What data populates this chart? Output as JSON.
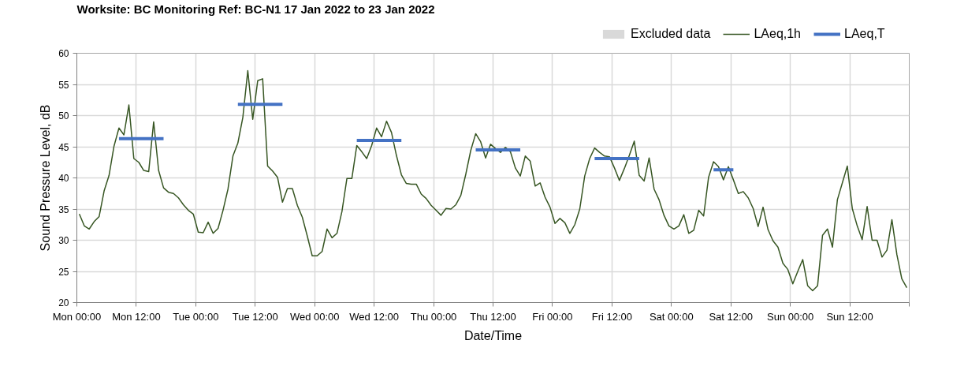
{
  "chart_data": {
    "type": "line",
    "title": "Worksite: BC    Monitoring Ref: BC-N1    17 Jan 2022 to 23 Jan 2022",
    "xlabel": "Date/Time",
    "ylabel": "Sound Pressure Level, dB",
    "xlim": [
      "2022-01-17T00:00",
      "2022-01-24T00:00"
    ],
    "ylim": [
      20,
      60
    ],
    "xticks": [
      {
        "value": "2022-01-17T00:00",
        "label": "Mon 00:00"
      },
      {
        "value": "2022-01-17T12:00",
        "label": "Mon 12:00"
      },
      {
        "value": "2022-01-18T00:00",
        "label": "Tue 00:00"
      },
      {
        "value": "2022-01-18T12:00",
        "label": "Tue 12:00"
      },
      {
        "value": "2022-01-19T00:00",
        "label": "Wed 00:00"
      },
      {
        "value": "2022-01-19T12:00",
        "label": "Wed 12:00"
      },
      {
        "value": "2022-01-20T00:00",
        "label": "Thu 00:00"
      },
      {
        "value": "2022-01-20T12:00",
        "label": "Thu 12:00"
      },
      {
        "value": "2022-01-21T00:00",
        "label": "Fri 00:00"
      },
      {
        "value": "2022-01-21T12:00",
        "label": "Fri 12:00"
      },
      {
        "value": "2022-01-22T00:00",
        "label": "Sat 00:00"
      },
      {
        "value": "2022-01-22T12:00",
        "label": "Sat 12:00"
      },
      {
        "value": "2022-01-23T00:00",
        "label": "Sun 00:00"
      },
      {
        "value": "2022-01-23T12:00",
        "label": "Sun 12:00"
      },
      {
        "value": "2022-01-24T00:00",
        "label": null
      }
    ],
    "yticks": [
      20,
      25,
      30,
      35,
      40,
      45,
      50,
      55,
      60
    ],
    "grid": true,
    "legend": "top right",
    "series": [
      {
        "name": "Excluded data",
        "type": "bar",
        "color": "#d9d9d9"
      },
      {
        "name": "LAeq,1h",
        "color": "#375623",
        "x": [
          "2022-01-17T00:30",
          "2022-01-17T01:30",
          "2022-01-17T02:30",
          "2022-01-17T03:30",
          "2022-01-17T04:30",
          "2022-01-17T05:30",
          "2022-01-17T06:30",
          "2022-01-17T07:30",
          "2022-01-17T08:30",
          "2022-01-17T09:30",
          "2022-01-17T10:30",
          "2022-01-17T11:30",
          "2022-01-17T12:30",
          "2022-01-17T13:30",
          "2022-01-17T14:30",
          "2022-01-17T15:30",
          "2022-01-17T16:30",
          "2022-01-17T17:30",
          "2022-01-17T18:30",
          "2022-01-17T19:30",
          "2022-01-17T20:30",
          "2022-01-17T21:30",
          "2022-01-17T22:30",
          "2022-01-17T23:30",
          "2022-01-18T00:30",
          "2022-01-18T01:30",
          "2022-01-18T02:30",
          "2022-01-18T03:30",
          "2022-01-18T04:30",
          "2022-01-18T05:30",
          "2022-01-18T06:30",
          "2022-01-18T07:30",
          "2022-01-18T08:30",
          "2022-01-18T09:30",
          "2022-01-18T10:30",
          "2022-01-18T11:30",
          "2022-01-18T12:30",
          "2022-01-18T13:30",
          "2022-01-18T14:30",
          "2022-01-18T15:30",
          "2022-01-18T16:30",
          "2022-01-18T17:30",
          "2022-01-18T18:30",
          "2022-01-18T19:30",
          "2022-01-18T20:30",
          "2022-01-18T21:30",
          "2022-01-18T22:30",
          "2022-01-18T23:30",
          "2022-01-19T00:30",
          "2022-01-19T01:30",
          "2022-01-19T02:30",
          "2022-01-19T03:30",
          "2022-01-19T04:30",
          "2022-01-19T05:30",
          "2022-01-19T06:30",
          "2022-01-19T07:30",
          "2022-01-19T08:30",
          "2022-01-19T09:30",
          "2022-01-19T10:30",
          "2022-01-19T11:30",
          "2022-01-19T12:30",
          "2022-01-19T13:30",
          "2022-01-19T14:30",
          "2022-01-19T15:30",
          "2022-01-19T16:30",
          "2022-01-19T17:30",
          "2022-01-19T18:30",
          "2022-01-19T19:30",
          "2022-01-19T20:30",
          "2022-01-19T21:30",
          "2022-01-19T22:30",
          "2022-01-19T23:30",
          "2022-01-20T00:30",
          "2022-01-20T01:30",
          "2022-01-20T02:30",
          "2022-01-20T03:30",
          "2022-01-20T04:30",
          "2022-01-20T05:30",
          "2022-01-20T06:30",
          "2022-01-20T07:30",
          "2022-01-20T08:30",
          "2022-01-20T09:30",
          "2022-01-20T10:30",
          "2022-01-20T11:30",
          "2022-01-20T12:30",
          "2022-01-20T13:30",
          "2022-01-20T14:30",
          "2022-01-20T15:30",
          "2022-01-20T16:30",
          "2022-01-20T17:30",
          "2022-01-20T18:30",
          "2022-01-20T19:30",
          "2022-01-20T20:30",
          "2022-01-20T21:30",
          "2022-01-20T22:30",
          "2022-01-20T23:30",
          "2022-01-21T00:30",
          "2022-01-21T01:30",
          "2022-01-21T02:30",
          "2022-01-21T03:30",
          "2022-01-21T04:30",
          "2022-01-21T05:30",
          "2022-01-21T06:30",
          "2022-01-21T07:30",
          "2022-01-21T08:30",
          "2022-01-21T09:30",
          "2022-01-21T10:30",
          "2022-01-21T11:30",
          "2022-01-21T12:30",
          "2022-01-21T13:30",
          "2022-01-21T14:30",
          "2022-01-21T15:30",
          "2022-01-21T16:30",
          "2022-01-21T17:30",
          "2022-01-21T18:30",
          "2022-01-21T19:30",
          "2022-01-21T20:30",
          "2022-01-21T21:30",
          "2022-01-21T22:30",
          "2022-01-21T23:30",
          "2022-01-22T00:30",
          "2022-01-22T01:30",
          "2022-01-22T02:30",
          "2022-01-22T03:30",
          "2022-01-22T04:30",
          "2022-01-22T05:30",
          "2022-01-22T06:30",
          "2022-01-22T07:30",
          "2022-01-22T08:30",
          "2022-01-22T09:30",
          "2022-01-22T10:30",
          "2022-01-22T11:30",
          "2022-01-22T12:30",
          "2022-01-22T13:30",
          "2022-01-22T14:30",
          "2022-01-22T15:30",
          "2022-01-22T16:30",
          "2022-01-22T17:30",
          "2022-01-22T18:30",
          "2022-01-22T19:30",
          "2022-01-22T20:30",
          "2022-01-22T21:30",
          "2022-01-22T22:30",
          "2022-01-22T23:30",
          "2022-01-23T00:30",
          "2022-01-23T01:30",
          "2022-01-23T02:30",
          "2022-01-23T03:30",
          "2022-01-23T04:30",
          "2022-01-23T05:30",
          "2022-01-23T06:30",
          "2022-01-23T07:30",
          "2022-01-23T08:30",
          "2022-01-23T09:30",
          "2022-01-23T10:30",
          "2022-01-23T11:30",
          "2022-01-23T12:30",
          "2022-01-23T13:30",
          "2022-01-23T14:30",
          "2022-01-23T15:30",
          "2022-01-23T16:30",
          "2022-01-23T17:30",
          "2022-01-23T18:30",
          "2022-01-23T19:30",
          "2022-01-23T20:30",
          "2022-01-23T21:30",
          "2022-01-23T22:30",
          "2022-01-23T23:30"
        ],
        "values": [
          34.2,
          32.3,
          31.8,
          33.0,
          33.8,
          37.9,
          40.4,
          45.1,
          48.0,
          46.9,
          51.7,
          43.1,
          42.5,
          41.2,
          41.0,
          49.0,
          41.2,
          38.4,
          37.7,
          37.5,
          36.8,
          35.7,
          34.8,
          34.2,
          31.3,
          31.2,
          32.9,
          31.1,
          31.9,
          34.8,
          38.2,
          43.5,
          45.6,
          49.7,
          57.2,
          49.4,
          55.6,
          55.9,
          41.9,
          41.1,
          40.1,
          36.1,
          38.3,
          38.3,
          35.6,
          33.7,
          30.7,
          27.5,
          27.5,
          28.2,
          31.8,
          30.4,
          31.1,
          34.6,
          39.9,
          39.9,
          45.2,
          44.2,
          43.1,
          45.2,
          48.0,
          46.6,
          49.1,
          47.3,
          43.6,
          40.5,
          39.1,
          39.0,
          39.0,
          37.4,
          36.7,
          35.6,
          34.8,
          34.0,
          35.1,
          35.0,
          35.7,
          37.2,
          40.6,
          44.4,
          47.1,
          45.8,
          43.2,
          45.4,
          44.7,
          44.1,
          44.9,
          44.2,
          41.6,
          40.3,
          43.5,
          42.7,
          38.7,
          39.2,
          36.9,
          35.3,
          32.7,
          33.5,
          32.8,
          31.1,
          32.5,
          35.0,
          40.3,
          43.1,
          44.8,
          44.1,
          43.5,
          43.4,
          41.6,
          39.6,
          41.5,
          43.6,
          45.9,
          40.4,
          39.5,
          43.2,
          38.2,
          36.5,
          34.0,
          32.3,
          31.8,
          32.3,
          34.1,
          31.1,
          31.6,
          34.8,
          33.9,
          40.1,
          42.6,
          41.8,
          39.7,
          41.8,
          39.7,
          37.5,
          37.8,
          36.8,
          35.1,
          32.2,
          35.3,
          31.7,
          29.9,
          28.9,
          26.3,
          25.3,
          23.0,
          25.0,
          26.9,
          22.7,
          21.9,
          22.7,
          30.8,
          31.8,
          28.9,
          36.5,
          39.2,
          41.9,
          35.1,
          32.3,
          30.1,
          35.4,
          30.0,
          30.0,
          27.3,
          28.4,
          33.3,
          27.7,
          23.8,
          22.4
        ]
      },
      {
        "name": "LAeq,T",
        "color": "#4472c4",
        "x": [
          "2022-01-17T08:30",
          "2022-01-17T17:30",
          "2022-01-18T01:00",
          "2022-01-18T08:30",
          "2022-01-18T17:30",
          "2022-01-19T01:00",
          "2022-01-19T08:30",
          "2022-01-19T17:30",
          "2022-01-20T01:00",
          "2022-01-20T08:30",
          "2022-01-20T17:30",
          "2022-01-21T01:00",
          "2022-01-21T08:30",
          "2022-01-21T17:30",
          "2022-01-22T01:00",
          "2022-01-22T08:30",
          "2022-01-22T12:30"
        ],
        "values": [
          46.3,
          46.3,
          null,
          51.8,
          51.8,
          null,
          46.0,
          46.0,
          null,
          44.5,
          44.5,
          null,
          43.1,
          43.1,
          null,
          41.3,
          41.3
        ]
      }
    ]
  }
}
